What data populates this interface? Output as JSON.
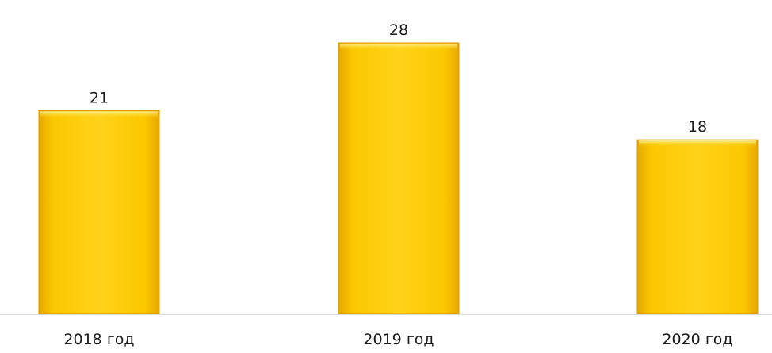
{
  "chart_data": {
    "type": "bar",
    "categories": [
      "2018 год",
      "2019 год",
      "2020 год"
    ],
    "values": [
      21,
      28,
      18
    ],
    "title": "",
    "xlabel": "",
    "ylabel": "",
    "ylim": [
      0,
      30
    ],
    "grid": false,
    "legend": "none",
    "data_labels": true,
    "colors": {
      "bar_top": "#ffd21a",
      "bar_mid": "#fbc800",
      "bar_bottom": "#f0b400",
      "bar_edge": "#d99a00",
      "axis": "#d9d9d9"
    }
  }
}
